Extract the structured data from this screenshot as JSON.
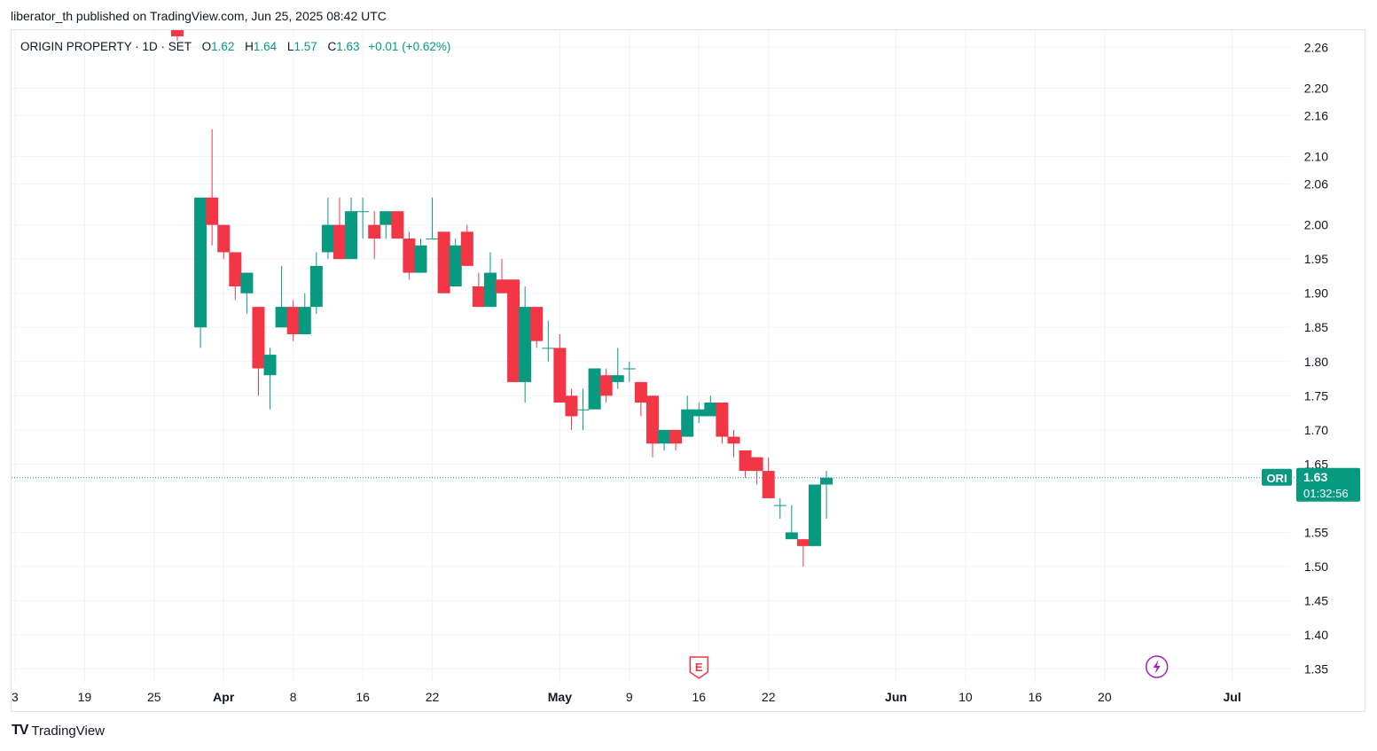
{
  "header": {
    "published_line": "liberator_th published on TradingView.com, Jun 25, 2025 08:42 UTC"
  },
  "legend": {
    "symbol_line": "ORIGIN PROPERTY · 1D · SET",
    "o_label": "O",
    "o_value": "1.62",
    "h_label": "H",
    "h_value": "1.64",
    "l_label": "L",
    "l_value": "1.57",
    "c_label": "C",
    "c_value": "1.63",
    "change": "+0.01 (+0.62%)"
  },
  "price_tag": {
    "ticker": "ORI",
    "price": "1.63",
    "countdown": "01:32:56"
  },
  "markers": {
    "earnings_icon": "E",
    "dividend_icon": "lightning-icon"
  },
  "footer": {
    "logo_mark": "TV",
    "brand": "TradingView"
  },
  "colors": {
    "up": "#089981",
    "down": "#f23645",
    "grid": "#f0f3fa",
    "axis_text": "#131722",
    "current_price_line": "#089981",
    "dividend_marker": "#9c27b0"
  },
  "chart_data": {
    "type": "candlestick",
    "y_axis_ticks": [
      "2.26",
      "2.20",
      "2.16",
      "2.10",
      "2.06",
      "2.00",
      "1.95",
      "1.90",
      "1.85",
      "1.80",
      "1.75",
      "1.70",
      "1.65",
      "1.55",
      "1.50",
      "1.45",
      "1.40",
      "1.35"
    ],
    "ylim": [
      1.33,
      2.285
    ],
    "x_axis_ticks": [
      {
        "label": "3",
        "day": -20,
        "bold": false
      },
      {
        "label": "19",
        "day": -14,
        "bold": false
      },
      {
        "label": "25",
        "day": -8,
        "bold": false
      },
      {
        "label": "Apr",
        "day": -2,
        "bold": true
      },
      {
        "label": "8",
        "day": 4,
        "bold": false
      },
      {
        "label": "16",
        "day": 10,
        "bold": false
      },
      {
        "label": "22",
        "day": 16,
        "bold": false
      },
      {
        "label": "May",
        "day": 27,
        "bold": true
      },
      {
        "label": "9",
        "day": 33,
        "bold": false
      },
      {
        "label": "16",
        "day": 39,
        "bold": false
      },
      {
        "label": "22",
        "day": 45,
        "bold": false
      },
      {
        "label": "Jun",
        "day": 56,
        "bold": true
      },
      {
        "label": "10",
        "day": 62,
        "bold": false
      },
      {
        "label": "16",
        "day": 68,
        "bold": false
      },
      {
        "label": "20",
        "day": 74,
        "bold": false
      },
      {
        "label": "Jul",
        "day": 85,
        "bold": true
      }
    ],
    "day_range": [
      -20.3,
      90.0
    ],
    "current_price": 1.63,
    "earnings_marker_day": 39,
    "dividend_marker_day": 78.5,
    "candles": [
      {
        "d": -4,
        "o": 1.85,
        "h": 2.04,
        "l": 1.82,
        "c": 2.04
      },
      {
        "d": -3,
        "o": 2.04,
        "h": 2.14,
        "l": 1.97,
        "c": 2.0
      },
      {
        "d": -2,
        "o": 2.0,
        "h": 2.0,
        "l": 1.95,
        "c": 1.96
      },
      {
        "d": -1,
        "o": 1.96,
        "h": 1.96,
        "l": 1.89,
        "c": 1.91
      },
      {
        "d": 0,
        "o": 1.9,
        "h": 1.93,
        "l": 1.87,
        "c": 1.93
      },
      {
        "d": 1,
        "o": 1.88,
        "h": 1.88,
        "l": 1.75,
        "c": 1.79
      },
      {
        "d": 2,
        "o": 1.78,
        "h": 1.82,
        "l": 1.73,
        "c": 1.81
      },
      {
        "d": 3,
        "o": 1.85,
        "h": 1.94,
        "l": 1.85,
        "c": 1.88
      },
      {
        "d": 4,
        "o": 1.88,
        "h": 1.89,
        "l": 1.83,
        "c": 1.84
      },
      {
        "d": 5,
        "o": 1.84,
        "h": 1.9,
        "l": 1.84,
        "c": 1.88
      },
      {
        "d": 6,
        "o": 1.88,
        "h": 1.96,
        "l": 1.87,
        "c": 1.94
      },
      {
        "d": 7,
        "o": 1.96,
        "h": 2.04,
        "l": 1.95,
        "c": 2.0
      },
      {
        "d": 8,
        "o": 2.0,
        "h": 2.04,
        "l": 1.95,
        "c": 1.95
      },
      {
        "d": 9,
        "o": 1.95,
        "h": 2.04,
        "l": 1.95,
        "c": 2.02
      },
      {
        "d": 10,
        "o": 2.02,
        "h": 2.04,
        "l": 1.98,
        "c": 2.02
      },
      {
        "d": 11,
        "o": 2.0,
        "h": 2.02,
        "l": 1.95,
        "c": 1.98
      },
      {
        "d": 12,
        "o": 2.0,
        "h": 2.02,
        "l": 1.98,
        "c": 2.02
      },
      {
        "d": 13,
        "o": 2.02,
        "h": 2.02,
        "l": 1.98,
        "c": 1.98
      },
      {
        "d": 14,
        "o": 1.98,
        "h": 1.99,
        "l": 1.92,
        "c": 1.93
      },
      {
        "d": 15,
        "o": 1.93,
        "h": 1.98,
        "l": 1.93,
        "c": 1.97
      },
      {
        "d": 16,
        "o": 1.98,
        "h": 2.04,
        "l": 1.98,
        "c": 1.98
      },
      {
        "d": 17,
        "o": 1.99,
        "h": 1.99,
        "l": 1.9,
        "c": 1.9
      },
      {
        "d": 18,
        "o": 1.91,
        "h": 1.98,
        "l": 1.91,
        "c": 1.97
      },
      {
        "d": 19,
        "o": 1.99,
        "h": 2.0,
        "l": 1.94,
        "c": 1.94
      },
      {
        "d": 20,
        "o": 1.91,
        "h": 1.93,
        "l": 1.88,
        "c": 1.88
      },
      {
        "d": 21,
        "o": 1.88,
        "h": 1.96,
        "l": 1.88,
        "c": 1.93
      },
      {
        "d": 22,
        "o": 1.92,
        "h": 1.95,
        "l": 1.9,
        "c": 1.9
      },
      {
        "d": 23,
        "o": 1.92,
        "h": 1.92,
        "l": 1.77,
        "c": 1.77
      },
      {
        "d": 24,
        "o": 1.77,
        "h": 1.91,
        "l": 1.74,
        "c": 1.88
      },
      {
        "d": 25,
        "o": 1.88,
        "h": 1.88,
        "l": 1.82,
        "c": 1.83
      },
      {
        "d": 26,
        "o": 1.82,
        "h": 1.86,
        "l": 1.8,
        "c": 1.82
      },
      {
        "d": 27,
        "o": 1.82,
        "h": 1.84,
        "l": 1.74,
        "c": 1.74
      },
      {
        "d": 28,
        "o": 1.75,
        "h": 1.76,
        "l": 1.7,
        "c": 1.72
      },
      {
        "d": 29,
        "o": 1.73,
        "h": 1.76,
        "l": 1.7,
        "c": 1.73
      },
      {
        "d": 30,
        "o": 1.73,
        "h": 1.79,
        "l": 1.73,
        "c": 1.79
      },
      {
        "d": 31,
        "o": 1.78,
        "h": 1.79,
        "l": 1.74,
        "c": 1.75
      },
      {
        "d": 32,
        "o": 1.77,
        "h": 1.82,
        "l": 1.76,
        "c": 1.78
      },
      {
        "d": 33,
        "o": 1.79,
        "h": 1.8,
        "l": 1.77,
        "c": 1.79
      },
      {
        "d": 34,
        "o": 1.77,
        "h": 1.77,
        "l": 1.72,
        "c": 1.74
      },
      {
        "d": 35,
        "o": 1.75,
        "h": 1.75,
        "l": 1.66,
        "c": 1.68
      },
      {
        "d": 36,
        "o": 1.68,
        "h": 1.7,
        "l": 1.67,
        "c": 1.7
      },
      {
        "d": 37,
        "o": 1.7,
        "h": 1.7,
        "l": 1.67,
        "c": 1.68
      },
      {
        "d": 38,
        "o": 1.69,
        "h": 1.75,
        "l": 1.69,
        "c": 1.73
      },
      {
        "d": 39,
        "o": 1.72,
        "h": 1.74,
        "l": 1.71,
        "c": 1.73
      },
      {
        "d": 40,
        "o": 1.72,
        "h": 1.75,
        "l": 1.72,
        "c": 1.74
      },
      {
        "d": 41,
        "o": 1.74,
        "h": 1.74,
        "l": 1.68,
        "c": 1.69
      },
      {
        "d": 42,
        "o": 1.69,
        "h": 1.7,
        "l": 1.66,
        "c": 1.68
      },
      {
        "d": 43,
        "o": 1.67,
        "h": 1.67,
        "l": 1.63,
        "c": 1.64
      },
      {
        "d": 44,
        "o": 1.66,
        "h": 1.66,
        "l": 1.62,
        "c": 1.64
      },
      {
        "d": 45,
        "o": 1.64,
        "h": 1.66,
        "l": 1.6,
        "c": 1.6
      },
      {
        "d": 46,
        "o": 1.59,
        "h": 1.6,
        "l": 1.57,
        "c": 1.59
      },
      {
        "d": 47,
        "o": 1.54,
        "h": 1.59,
        "l": 1.54,
        "c": 1.55
      },
      {
        "d": 48,
        "o": 1.54,
        "h": 1.54,
        "l": 1.5,
        "c": 1.53
      },
      {
        "d": 49,
        "o": 1.53,
        "h": 1.62,
        "l": 1.53,
        "c": 1.62
      },
      {
        "d": 50,
        "o": 1.62,
        "h": 1.64,
        "l": 1.57,
        "c": 1.63
      }
    ],
    "cropped_top_candle_day": -6
  }
}
